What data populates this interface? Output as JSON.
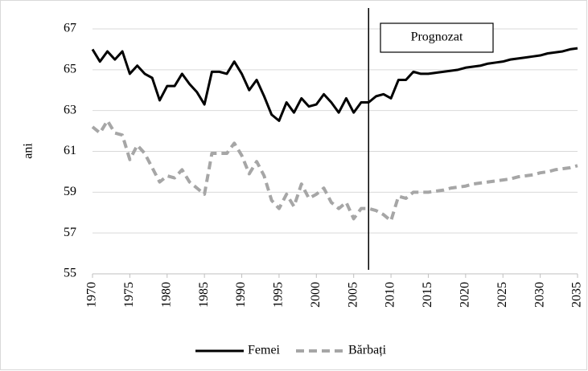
{
  "chart_data": {
    "type": "line",
    "y_label": "ani",
    "annotation": {
      "text": "Prognozat",
      "x": 2007
    },
    "x": [
      1970,
      1971,
      1972,
      1973,
      1974,
      1975,
      1976,
      1977,
      1978,
      1979,
      1980,
      1981,
      1982,
      1983,
      1984,
      1985,
      1986,
      1987,
      1988,
      1989,
      1990,
      1991,
      1992,
      1993,
      1994,
      1995,
      1996,
      1997,
      1998,
      1999,
      2000,
      2001,
      2002,
      2003,
      2004,
      2005,
      2006,
      2007,
      2008,
      2009,
      2010,
      2011,
      2012,
      2013,
      2014,
      2015,
      2016,
      2017,
      2018,
      2019,
      2020,
      2021,
      2022,
      2023,
      2024,
      2025,
      2026,
      2027,
      2028,
      2029,
      2030,
      2031,
      2032,
      2033,
      2034,
      2035
    ],
    "series": [
      {
        "name": "Femei",
        "color": "#000000",
        "style": "solid",
        "values": [
          66.0,
          65.4,
          65.9,
          65.5,
          65.9,
          64.8,
          65.2,
          64.8,
          64.6,
          63.5,
          64.2,
          64.2,
          64.8,
          64.3,
          63.9,
          63.3,
          64.9,
          64.9,
          64.8,
          65.4,
          64.8,
          64.0,
          64.5,
          63.7,
          62.8,
          62.5,
          63.4,
          62.9,
          63.6,
          63.2,
          63.3,
          63.8,
          63.4,
          62.9,
          63.6,
          62.9,
          63.4,
          63.4,
          63.7,
          63.8,
          63.6,
          64.5,
          64.5,
          64.9,
          64.8,
          64.8,
          64.85,
          64.9,
          64.95,
          65.0,
          65.1,
          65.15,
          65.2,
          65.3,
          65.35,
          65.4,
          65.5,
          65.55,
          65.6,
          65.65,
          65.7,
          65.8,
          65.85,
          65.9,
          66.0,
          66.05
        ]
      },
      {
        "name": "Bărbați",
        "color": "#a6a6a6",
        "style": "dashed",
        "values": [
          62.2,
          61.9,
          62.5,
          61.9,
          61.8,
          60.6,
          61.3,
          60.9,
          60.2,
          59.5,
          59.8,
          59.7,
          60.1,
          59.5,
          59.2,
          58.9,
          60.9,
          60.9,
          60.9,
          61.4,
          60.8,
          59.9,
          60.5,
          59.8,
          58.6,
          58.2,
          58.9,
          58.3,
          59.4,
          58.7,
          58.9,
          59.2,
          58.5,
          58.2,
          58.5,
          57.7,
          58.2,
          58.2,
          58.1,
          57.9,
          57.6,
          58.8,
          58.7,
          59.0,
          59.0,
          59.0,
          59.05,
          59.1,
          59.2,
          59.25,
          59.3,
          59.4,
          59.45,
          59.5,
          59.55,
          59.6,
          59.65,
          59.75,
          59.8,
          59.85,
          59.95,
          60.0,
          60.1,
          60.15,
          60.2,
          60.3
        ]
      }
    ],
    "xlim": [
      1970,
      2035
    ],
    "xticks": [
      1970,
      1975,
      1980,
      1985,
      1990,
      1995,
      2000,
      2005,
      2010,
      2015,
      2020,
      2025,
      2030,
      2035
    ],
    "ylim": [
      55,
      67
    ],
    "yticks": [
      55,
      57,
      59,
      61,
      63,
      65,
      67
    ],
    "grid": true,
    "legend": "bottom"
  }
}
